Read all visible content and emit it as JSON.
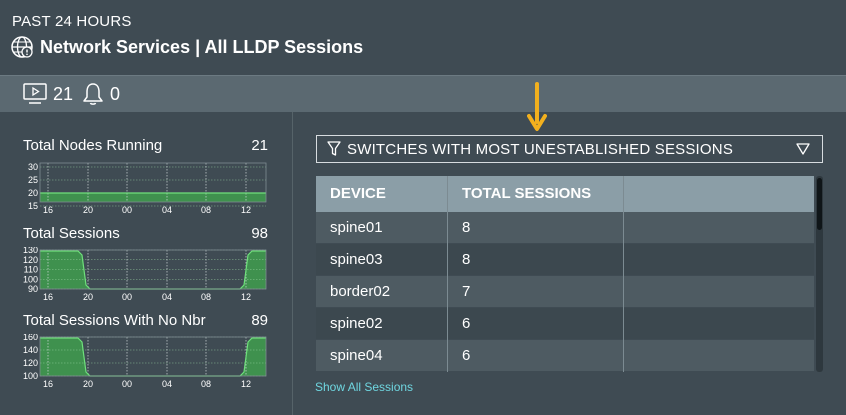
{
  "header": {
    "period": "PAST 24 HOURS",
    "title": "Network Services | All LLDP Sessions",
    "icon": "globe-icon"
  },
  "status": {
    "nodes_count": "21",
    "alarms_count": "0"
  },
  "metrics": [
    {
      "label": "Total Nodes Running",
      "value": "21",
      "y_ticks": [
        "30",
        "25",
        "20",
        "15"
      ],
      "x_ticks": [
        "16",
        "20",
        "00",
        "04",
        "08",
        "12"
      ]
    },
    {
      "label": "Total Sessions",
      "value": "98",
      "y_ticks": [
        "130",
        "120",
        "110",
        "100",
        "90"
      ],
      "x_ticks": [
        "16",
        "20",
        "00",
        "04",
        "08",
        "12"
      ]
    },
    {
      "label": "Total Sessions With No Nbr",
      "value": "89",
      "y_ticks": [
        "160",
        "140",
        "120",
        "100"
      ],
      "x_ticks": [
        "16",
        "20",
        "00",
        "04",
        "08",
        "12"
      ]
    }
  ],
  "filter": {
    "label": "SWITCHES WITH MOST UNESTABLISHED SESSIONS"
  },
  "table": {
    "columns": [
      "DEVICE",
      "TOTAL SESSIONS"
    ],
    "rows": [
      [
        "spine01",
        "8"
      ],
      [
        "spine03",
        "8"
      ],
      [
        "border02",
        "7"
      ],
      [
        "spine02",
        "6"
      ],
      [
        "spine04",
        "6"
      ]
    ]
  },
  "footer": {
    "link": "Show All Sessions"
  },
  "colors": {
    "background": "#3f4b53",
    "statusbar": "#5b6971",
    "table_header": "#8b9ea7",
    "row_light": "#4e5b62",
    "row_dark": "#3c484f",
    "spark_fill": "#3f9e4d",
    "spark_line": "#6fe07c",
    "link": "#6fd6e0",
    "arrow": "#f2b01e"
  }
}
